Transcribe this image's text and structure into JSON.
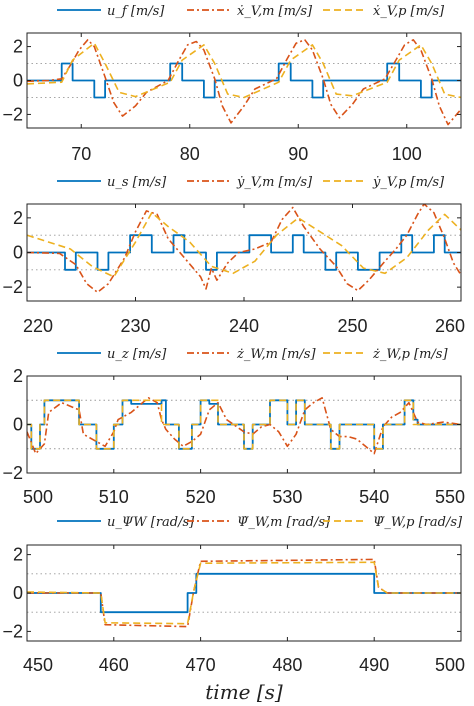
{
  "colors": {
    "u": "#0072BD",
    "m": "#D95319",
    "p": "#EDB120"
  },
  "chart_data": [
    {
      "type": "line",
      "xlim": [
        65,
        105
      ],
      "ylim": [
        -2.8,
        2.8
      ],
      "xticks": [
        70,
        80,
        90,
        100
      ],
      "yticks": [
        -2,
        0,
        2
      ],
      "grid_y": [
        -1,
        1
      ],
      "xlabel": "",
      "legend": [
        "u_f [m/s]",
        "ẋ_V,m [m/s]",
        "ẋ_V,p [m/s]"
      ],
      "series": [
        {
          "name": "u_f [m/s]",
          "style": "solid",
          "color": "u",
          "x": [
            65,
            68.2,
            68.2,
            69.2,
            69.2,
            71.2,
            71.2,
            72.2,
            72.2,
            78.2,
            78.2,
            79.3,
            79.3,
            81.3,
            81.3,
            82.3,
            82.3,
            88.2,
            88.2,
            89.3,
            89.3,
            91.3,
            91.3,
            92.3,
            92.3,
            98.2,
            98.2,
            99.3,
            99.3,
            101.3,
            101.3,
            102.3,
            102.3,
            105
          ],
          "y": [
            0,
            0,
            1,
            1,
            0,
            0,
            -1,
            -1,
            0,
            0,
            1,
            1,
            0,
            0,
            -1,
            -1,
            0,
            0,
            1,
            1,
            0,
            0,
            -1,
            -1,
            0,
            0,
            1,
            1,
            0,
            0,
            -1,
            -1,
            0,
            0
          ]
        },
        {
          "name": "ẋ_V,m [m/s]",
          "style": "dashdot",
          "color": "m",
          "x": [
            65,
            67,
            68.2,
            69,
            69.8,
            70.6,
            71.2,
            72.2,
            73,
            73.8,
            75,
            76,
            78,
            79,
            79.8,
            80.6,
            81.3,
            82.3,
            83,
            83.8,
            85,
            86,
            88,
            89,
            89.8,
            90.6,
            91.3,
            92.3,
            93,
            93.8,
            95,
            96,
            98,
            99,
            99.8,
            100.6,
            101.3,
            102.3,
            103,
            103.8,
            105
          ],
          "y": [
            -0.05,
            0,
            0.1,
            0.9,
            1.8,
            2.4,
            2,
            0.2,
            -1.3,
            -2.1,
            -1.5,
            -0.7,
            0,
            1.2,
            2.1,
            2.3,
            1.8,
            0.1,
            -1.5,
            -2.5,
            -1.5,
            -0.5,
            0.1,
            1.3,
            2.2,
            2.4,
            1.8,
            0.1,
            -1.4,
            -2.2,
            -1.4,
            -0.5,
            0.1,
            1.2,
            2.1,
            2.4,
            1.8,
            0.1,
            -1.5,
            -2.6,
            -1.7
          ]
        },
        {
          "name": "ẋ_V,p [m/s]",
          "style": "dashed",
          "color": "p",
          "x": [
            65,
            68.2,
            69.2,
            71.2,
            72.2,
            73.5,
            75,
            78.2,
            79.3,
            81.3,
            82.3,
            83.5,
            85,
            88.2,
            89.3,
            91.3,
            92.3,
            93.5,
            95,
            98.2,
            99.3,
            101.3,
            102.3,
            103.5,
            105
          ],
          "y": [
            -0.2,
            -0.1,
            1.2,
            2.2,
            1,
            -0.7,
            -0.95,
            -0.1,
            1.2,
            2.1,
            1,
            -0.8,
            -1,
            -0.1,
            1.2,
            2.1,
            1,
            -0.8,
            -0.9,
            -0.1,
            1.2,
            2.1,
            1,
            -0.8,
            -1
          ]
        }
      ]
    },
    {
      "type": "line",
      "xlim": [
        220,
        260
      ],
      "ylim": [
        -2.8,
        2.8
      ],
      "xticks": [
        220,
        230,
        240,
        250,
        260
      ],
      "yticks": [
        -2,
        0,
        2
      ],
      "grid_y": [
        -1,
        1
      ],
      "xlabel": "",
      "legend": [
        "u_s [m/s]",
        "ẏ_V,m [m/s]",
        "ẏ_V,p [m/s]"
      ],
      "series": [
        {
          "name": "u_s [m/s]",
          "style": "solid",
          "color": "u",
          "x": [
            220,
            223.5,
            223.5,
            224.5,
            224.5,
            226.5,
            226.5,
            227.5,
            227.5,
            229.5,
            229.5,
            231.5,
            231.5,
            233.5,
            233.5,
            234.5,
            234.5,
            236.5,
            236.5,
            237.5,
            237.5,
            240.5,
            240.5,
            242.5,
            242.5,
            244.5,
            244.5,
            245.5,
            245.5,
            247.5,
            247.5,
            248.5,
            248.5,
            250.5,
            250.5,
            252.5,
            252.5,
            254.5,
            254.5,
            255.5,
            255.5,
            257.5,
            257.5,
            258.5,
            258.5,
            260
          ],
          "y": [
            0,
            0,
            -1,
            -1,
            0,
            0,
            -1,
            -1,
            0,
            0,
            1,
            1,
            0,
            0,
            1,
            1,
            0,
            0,
            -1,
            -1,
            0,
            0,
            1,
            1,
            0,
            0,
            1,
            1,
            0,
            0,
            -1,
            -1,
            0,
            0,
            -1,
            -1,
            0,
            0,
            1,
            1,
            0,
            0,
            1,
            1,
            0,
            0
          ]
        },
        {
          "name": "ẏ_V,m [m/s]",
          "style": "dashdot",
          "color": "m",
          "x": [
            220,
            223,
            224.5,
            225.5,
            226.5,
            227.5,
            229,
            230,
            231,
            232,
            233,
            234.5,
            236,
            236.5,
            237,
            237.5,
            238.5,
            239.5,
            241,
            242.5,
            243.5,
            244.5,
            245.5,
            247,
            248.5,
            249.5,
            250.5,
            251.5,
            253,
            254,
            255,
            256,
            256.6,
            257.5,
            258.5,
            259.3,
            260
          ],
          "y": [
            0,
            -0.05,
            -0.7,
            -1.8,
            -2.3,
            -1.8,
            -0.3,
            1.2,
            2.4,
            2.2,
            0.8,
            -0.3,
            -1.4,
            -2.1,
            -0.9,
            -1.6,
            -0.6,
            0,
            0.2,
            0.6,
            1.9,
            2.6,
            1.5,
            0.2,
            -0.8,
            -1.8,
            -2.2,
            -1.6,
            -0.5,
            0.2,
            1,
            2.2,
            2.8,
            2.3,
            0.8,
            -0.6,
            -1.3
          ]
        },
        {
          "name": "ẏ_V,p [m/s]",
          "style": "dashed",
          "color": "p",
          "x": [
            220,
            222,
            224,
            226,
            228,
            230,
            231.5,
            233,
            235,
            237,
            239,
            241,
            243,
            245,
            247,
            249,
            251,
            253,
            255,
            257,
            258.5,
            260
          ],
          "y": [
            1,
            0.6,
            0.2,
            -0.8,
            -1.4,
            0.6,
            2.3,
            1.5,
            0.6,
            -0.8,
            -1.2,
            -0.5,
            1,
            2,
            1.2,
            0.4,
            -0.9,
            -1.2,
            -0.3,
            1.3,
            2.2,
            1.3
          ]
        }
      ]
    },
    {
      "type": "line",
      "xlim": [
        500,
        550
      ],
      "ylim": [
        -2,
        2
      ],
      "xticks": [
        500,
        510,
        520,
        530,
        540,
        550
      ],
      "yticks": [
        -2,
        0,
        2
      ],
      "grid_y": [
        -1,
        1
      ],
      "xlabel": "",
      "legend": [
        "u_z [m/s]",
        "ż_W,m [m/s]",
        "ż_W,p [m/s]"
      ],
      "series": [
        {
          "name": "u_z [m/s]",
          "style": "solid",
          "color": "u",
          "x": [
            500,
            500.5,
            500.5,
            501.5,
            501.5,
            502,
            502,
            506,
            506,
            508,
            508,
            510,
            510,
            511,
            511,
            512,
            512,
            515.5,
            515.5,
            516,
            516,
            517.5,
            517.5,
            519,
            519,
            520,
            520,
            521,
            521,
            522,
            522,
            525,
            525,
            526,
            526,
            528,
            528,
            530,
            530,
            531,
            531,
            532,
            532,
            535,
            535,
            536,
            536,
            540,
            540,
            541,
            541,
            543.5,
            543.5,
            544.5,
            544.5,
            545,
            545,
            550
          ],
          "y": [
            0,
            0,
            -1,
            -1,
            0,
            0,
            1,
            1,
            0,
            0,
            -1,
            -1,
            0,
            0,
            1,
            1,
            0.85,
            0.85,
            1,
            1,
            0,
            0,
            -1,
            -1,
            0,
            0,
            1,
            1,
            0.85,
            0.85,
            0,
            0,
            -1,
            -1,
            0,
            0,
            1,
            1,
            0,
            0,
            1,
            1,
            0,
            0,
            -1,
            -1,
            0,
            0,
            -1,
            -1,
            0,
            0,
            1,
            1,
            0.2,
            0.2,
            0,
            0
          ]
        },
        {
          "name": "ż_W,m [m/s]",
          "style": "dashdot",
          "color": "m",
          "x": [
            500,
            501,
            502,
            502.5,
            504,
            506,
            506.5,
            508,
            509,
            510,
            510.5,
            512,
            513,
            514,
            515,
            515.5,
            516,
            517,
            518,
            519,
            520,
            521,
            522,
            523,
            525,
            526,
            527,
            528,
            529,
            530,
            531,
            532,
            533,
            534,
            535,
            536,
            537,
            538,
            539,
            540,
            541,
            542,
            543,
            544,
            545,
            546,
            548,
            550
          ],
          "y": [
            -0.3,
            -1.2,
            -0.8,
            0.5,
            0.9,
            0.6,
            -0.4,
            -0.7,
            -0.9,
            -0.3,
            0.2,
            0.5,
            0.8,
            1.1,
            0.9,
            0.2,
            -0.2,
            -0.6,
            -0.9,
            -0.7,
            -0.4,
            0.6,
            0.9,
            0.2,
            -0.3,
            -0.4,
            -0.1,
            0,
            -0.3,
            -0.9,
            -0.4,
            0.6,
            0.9,
            1.1,
            -0.2,
            -0.5,
            -0.5,
            -0.6,
            -0.9,
            -1.2,
            -0.1,
            0.3,
            0.5,
            0.9,
            0.1,
            0,
            0.1,
            0
          ]
        },
        {
          "name": "ż_W,p [m/s]",
          "style": "dashed",
          "color": "p",
          "x": [
            500,
            500.5,
            500.5,
            501.5,
            501.5,
            502,
            502,
            506,
            506,
            508,
            508,
            510,
            510,
            511,
            511,
            515.5,
            515.5,
            517.5,
            517.5,
            519,
            519,
            520,
            520,
            522,
            522,
            525,
            525,
            526,
            526,
            528,
            528,
            530,
            530,
            531,
            531,
            532,
            532,
            535,
            535,
            536,
            536,
            540,
            540,
            541,
            541,
            543.5,
            543.5,
            544.5,
            544.5,
            550
          ],
          "y": [
            0,
            0,
            -1,
            -1,
            0,
            0,
            1,
            1,
            0,
            0,
            -1,
            -1,
            0,
            0,
            1,
            1,
            0,
            0,
            -1,
            -1,
            0,
            0,
            1,
            1,
            0,
            0,
            -1,
            -1,
            0,
            0,
            1,
            1,
            0,
            0,
            1,
            1,
            0,
            0,
            -1,
            -1,
            0,
            0,
            -1,
            -1,
            0,
            0,
            1,
            1,
            0,
            0
          ]
        }
      ]
    },
    {
      "type": "line",
      "xlim": [
        450,
        500
      ],
      "ylim": [
        -2.5,
        2.5
      ],
      "xticks": [
        450,
        460,
        470,
        480,
        490,
        500
      ],
      "yticks": [
        -2,
        0,
        2
      ],
      "grid_y": [
        -1,
        1
      ],
      "xlabel": "time [s]",
      "legend": [
        "u_ΨW [rad/s]",
        "Ψ̇_W,m [rad/s]",
        "Ψ̇_W,p [rad/s]"
      ],
      "series": [
        {
          "name": "u_ΨW [rad/s]",
          "style": "solid",
          "color": "u",
          "x": [
            450,
            458.5,
            458.5,
            468.5,
            468.5,
            469.5,
            469.5,
            490,
            490,
            500
          ],
          "y": [
            0,
            0,
            -1,
            -1,
            0,
            0,
            1,
            1,
            0,
            0
          ]
        },
        {
          "name": "Ψ̇_W,m [rad/s]",
          "style": "dashdot",
          "color": "m",
          "x": [
            450,
            458.5,
            459,
            468.5,
            469.2,
            470,
            490,
            490.5,
            491.5,
            500
          ],
          "y": [
            0,
            0,
            -1.65,
            -1.75,
            0.1,
            1.65,
            1.75,
            0.3,
            0,
            0
          ]
        },
        {
          "name": "Ψ̇_W,p [rad/s]",
          "style": "dashed",
          "color": "p",
          "x": [
            450,
            458.5,
            459,
            468.5,
            469.2,
            470,
            490,
            490.5,
            491.5,
            500
          ],
          "y": [
            0.05,
            0,
            -1.55,
            -1.6,
            0.1,
            1.55,
            1.6,
            0.3,
            0,
            0
          ]
        }
      ]
    }
  ]
}
